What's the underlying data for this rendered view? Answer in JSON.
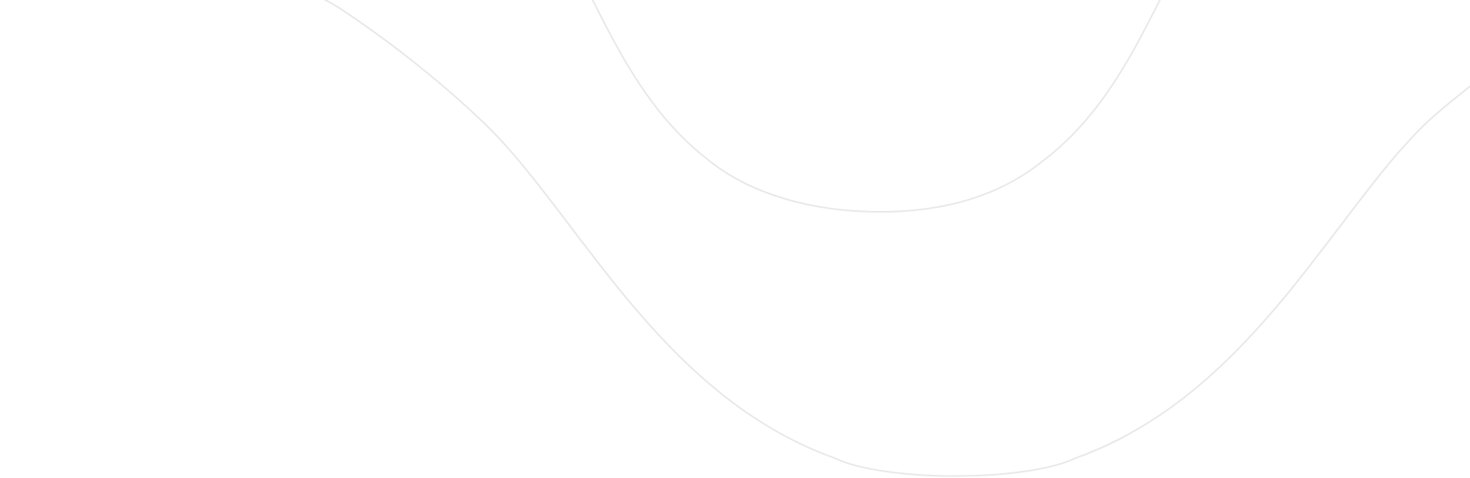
{
  "background": {
    "color": "#ffffff",
    "line_color": "#e8e8e8",
    "shapes": [
      "wave-line",
      "u-curve"
    ]
  }
}
